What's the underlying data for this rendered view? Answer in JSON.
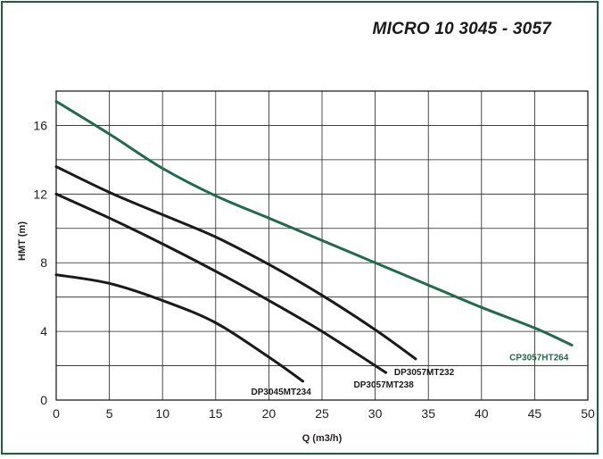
{
  "chart_data": {
    "type": "line",
    "title": "MICRO 10 3045 - 3057",
    "xlabel": "Q (m3/h)",
    "ylabel": "HMT (m)",
    "xlim": [
      0,
      50
    ],
    "ylim": [
      0,
      18
    ],
    "x_ticks": [
      0,
      5,
      10,
      15,
      20,
      25,
      30,
      35,
      40,
      45,
      50
    ],
    "y_ticks": [
      0,
      4,
      8,
      12,
      16
    ],
    "grid": true,
    "series": [
      {
        "name": "CP3057HT264",
        "color": "#1f6b4a",
        "x": [
          0,
          5,
          10,
          15,
          20,
          25,
          30,
          35,
          40,
          45,
          48.5
        ],
        "y": [
          17.4,
          15.5,
          13.5,
          11.9,
          10.6,
          9.3,
          8.0,
          6.7,
          5.4,
          4.2,
          3.2
        ]
      },
      {
        "name": "DP3057MT232",
        "color": "#1a1a1a",
        "x": [
          0,
          5,
          10,
          15,
          20,
          25,
          30,
          33.8
        ],
        "y": [
          13.6,
          12.1,
          10.8,
          9.5,
          7.9,
          6.1,
          4.1,
          2.4
        ]
      },
      {
        "name": "DP3057MT238",
        "color": "#1a1a1a",
        "x": [
          0,
          5,
          10,
          15,
          20,
          25,
          31
        ],
        "y": [
          12.0,
          10.6,
          9.1,
          7.5,
          5.8,
          4.0,
          1.6
        ]
      },
      {
        "name": "DP3045MT234",
        "color": "#1a1a1a",
        "x": [
          0,
          5,
          10,
          15,
          20,
          23.2
        ],
        "y": [
          7.3,
          6.8,
          5.8,
          4.5,
          2.5,
          1.1
        ]
      }
    ]
  }
}
